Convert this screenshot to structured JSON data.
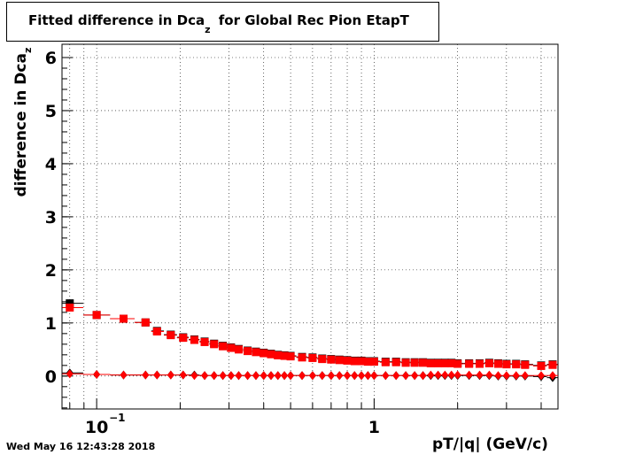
{
  "chart_data": {
    "type": "scatter",
    "title_main": "Fitted difference in Dca",
    "title_sub": "z",
    "title_rest": "for Global Rec Pion EtapT",
    "ylabel_main": "difference in Dca",
    "ylabel_sub": "z",
    "xlabel": "pT/|q| (GeV/c)",
    "x_scale": "log",
    "xlim": [
      0.075,
      4.6
    ],
    "ylim": [
      -0.62,
      6.25
    ],
    "grid": true,
    "y_ticks": [
      0,
      1,
      2,
      3,
      4,
      5,
      6
    ],
    "y_tick_labels": [
      "0",
      "1",
      "2",
      "3",
      "4",
      "5",
      "6"
    ],
    "x_tick_labels": [
      {
        "value": 0.1,
        "base": "10",
        "exp": "−1"
      },
      {
        "value": 1,
        "base": "1",
        "exp": ""
      }
    ],
    "series": [
      {
        "color": "#000000",
        "marker": "square",
        "x": [
          0.08,
          0.1,
          0.125,
          0.15,
          0.165,
          0.185,
          0.205,
          0.225,
          0.245,
          0.265,
          0.285,
          0.305,
          0.325,
          0.35,
          0.375,
          0.4,
          0.425,
          0.45,
          0.475,
          0.5,
          0.55,
          0.6,
          0.65,
          0.7,
          0.75,
          0.8,
          0.85,
          0.9,
          0.95,
          1.0,
          1.1,
          1.2,
          1.3,
          1.4,
          1.5,
          1.6,
          1.7,
          1.8,
          1.9,
          2.0,
          2.2,
          2.4,
          2.6,
          2.8,
          3.0,
          3.25,
          3.5,
          4.0,
          4.4
        ],
        "y": [
          1.37,
          1.15,
          1.08,
          1.01,
          0.85,
          0.78,
          0.73,
          0.69,
          0.65,
          0.61,
          0.57,
          0.54,
          0.51,
          0.48,
          0.46,
          0.44,
          0.42,
          0.4,
          0.39,
          0.38,
          0.36,
          0.35,
          0.33,
          0.32,
          0.31,
          0.3,
          0.29,
          0.29,
          0.28,
          0.28,
          0.27,
          0.27,
          0.26,
          0.26,
          0.26,
          0.25,
          0.25,
          0.25,
          0.25,
          0.24,
          0.24,
          0.24,
          0.25,
          0.24,
          0.23,
          0.23,
          0.22,
          0.2,
          0.22
        ]
      },
      {
        "color": "#ff0000",
        "marker": "square",
        "x": [
          0.08,
          0.1,
          0.125,
          0.15,
          0.165,
          0.185,
          0.205,
          0.225,
          0.245,
          0.265,
          0.285,
          0.305,
          0.325,
          0.35,
          0.375,
          0.4,
          0.425,
          0.45,
          0.475,
          0.5,
          0.55,
          0.6,
          0.65,
          0.7,
          0.75,
          0.8,
          0.85,
          0.9,
          0.95,
          1.0,
          1.1,
          1.2,
          1.3,
          1.4,
          1.5,
          1.6,
          1.7,
          1.8,
          1.9,
          2.0,
          2.2,
          2.4,
          2.6,
          2.8,
          3.0,
          3.25,
          3.5,
          4.0,
          4.4
        ],
        "y": [
          1.29,
          1.15,
          1.08,
          1.01,
          0.84,
          0.77,
          0.72,
          0.68,
          0.64,
          0.6,
          0.56,
          0.53,
          0.5,
          0.47,
          0.45,
          0.43,
          0.41,
          0.39,
          0.38,
          0.37,
          0.35,
          0.34,
          0.32,
          0.31,
          0.3,
          0.29,
          0.28,
          0.28,
          0.27,
          0.27,
          0.26,
          0.26,
          0.25,
          0.25,
          0.25,
          0.24,
          0.24,
          0.24,
          0.24,
          0.23,
          0.23,
          0.23,
          0.24,
          0.23,
          0.22,
          0.22,
          0.21,
          0.19,
          0.21
        ]
      },
      {
        "color": "#000000",
        "marker": "diamond",
        "x": [
          0.08,
          0.1,
          0.125,
          0.15,
          0.165,
          0.185,
          0.205,
          0.225,
          0.245,
          0.265,
          0.285,
          0.305,
          0.325,
          0.35,
          0.375,
          0.4,
          0.425,
          0.45,
          0.475,
          0.5,
          0.55,
          0.6,
          0.65,
          0.7,
          0.75,
          0.8,
          0.85,
          0.9,
          0.95,
          1.0,
          1.1,
          1.2,
          1.3,
          1.4,
          1.5,
          1.6,
          1.7,
          1.8,
          1.9,
          2.0,
          2.2,
          2.4,
          2.6,
          2.8,
          3.0,
          3.25,
          3.5,
          4.0,
          4.4
        ],
        "y": [
          0.06,
          0.03,
          0.02,
          0.02,
          0.02,
          0.02,
          0.02,
          0.02,
          0.01,
          0.01,
          0.01,
          0.01,
          0.01,
          0.01,
          0.01,
          0.01,
          0.01,
          0.01,
          0.01,
          0.01,
          0.01,
          0.01,
          0.01,
          0.01,
          0.01,
          0.01,
          0.01,
          0.01,
          0.01,
          0.01,
          0.01,
          0.01,
          0.01,
          0.01,
          0.01,
          0.01,
          0.01,
          0.01,
          0.01,
          0.01,
          0.01,
          0.01,
          0.01,
          0.0,
          0.0,
          0.0,
          0.0,
          -0.01,
          -0.03
        ]
      },
      {
        "color": "#ff0000",
        "marker": "diamond",
        "x": [
          0.08,
          0.1,
          0.125,
          0.15,
          0.165,
          0.185,
          0.205,
          0.225,
          0.245,
          0.265,
          0.285,
          0.305,
          0.325,
          0.35,
          0.375,
          0.4,
          0.425,
          0.45,
          0.475,
          0.5,
          0.55,
          0.6,
          0.65,
          0.7,
          0.75,
          0.8,
          0.85,
          0.9,
          0.95,
          1.0,
          1.1,
          1.2,
          1.3,
          1.4,
          1.5,
          1.6,
          1.7,
          1.8,
          1.9,
          2.0,
          2.2,
          2.4,
          2.6,
          2.8,
          3.0,
          3.25,
          3.5,
          4.0,
          4.4
        ],
        "y": [
          0.04,
          0.03,
          0.02,
          0.02,
          0.02,
          0.02,
          0.02,
          0.01,
          0.01,
          0.01,
          0.01,
          0.01,
          0.01,
          0.01,
          0.01,
          0.01,
          0.01,
          0.01,
          0.01,
          0.01,
          0.01,
          0.01,
          0.01,
          0.01,
          0.01,
          0.01,
          0.01,
          0.01,
          0.01,
          0.01,
          0.01,
          0.01,
          0.01,
          0.01,
          0.01,
          0.02,
          0.02,
          0.02,
          0.02,
          0.02,
          0.02,
          0.02,
          0.02,
          0.01,
          0.01,
          0.01,
          0.01,
          0.01,
          0.01
        ]
      }
    ]
  },
  "footer": {
    "timestamp": "Wed May 16 12:43:28 2018"
  }
}
